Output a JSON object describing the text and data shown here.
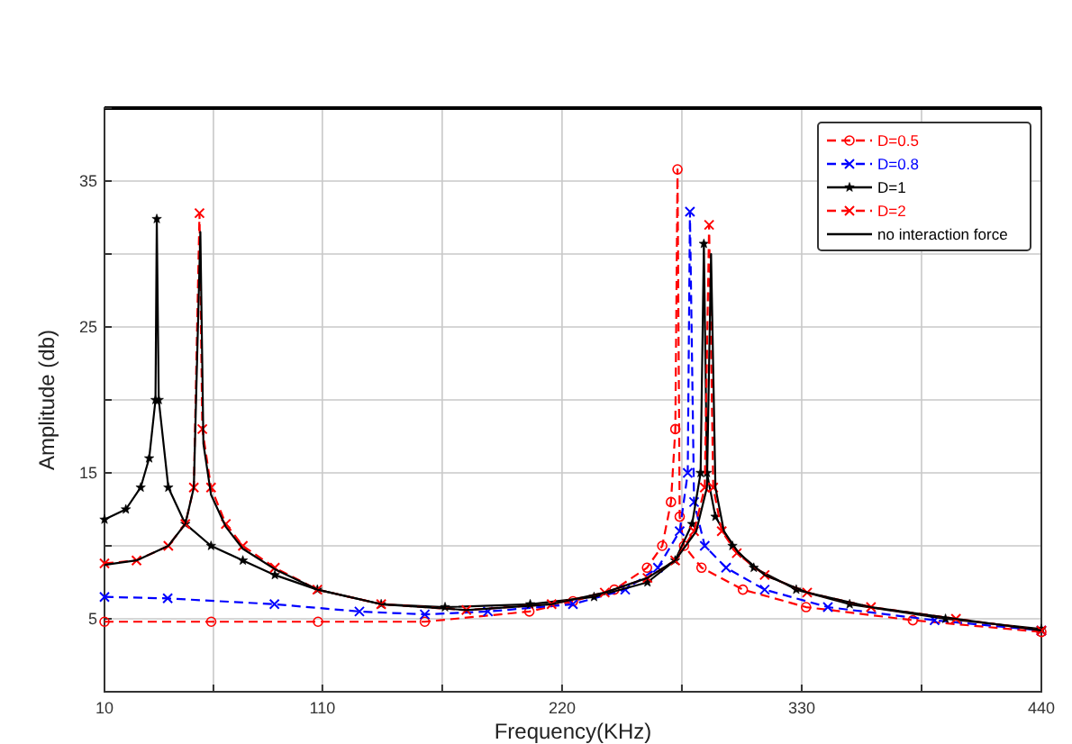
{
  "chart_data": {
    "type": "line",
    "xlabel": "Frequency(KHz)",
    "ylabel": "Amplitude (db)",
    "xlim": [
      10,
      440
    ],
    "xticks": [
      10,
      {
        "value": 60,
        "label": null
      },
      110,
      {
        "value": 165,
        "label": null
      },
      220,
      {
        "value": 275,
        "label": null
      },
      330,
      {
        "value": 385,
        "label": null
      },
      440
    ],
    "ylim": [
      0,
      40
    ],
    "yticks": [
      {
        "value": 0,
        "label": null
      },
      5,
      {
        "value": 10,
        "label": null
      },
      15,
      {
        "value": 20,
        "label": null
      },
      25,
      {
        "value": 30,
        "label": null
      },
      35,
      {
        "value": 40,
        "label": null
      }
    ],
    "grid": true,
    "legend": "top right",
    "series": [
      {
        "name": "D=0.5",
        "color": "#ff0000",
        "marker": "circle",
        "line_style": "dashed",
        "x": [
          10,
          59,
          108,
          157,
          205,
          225,
          244,
          259,
          266,
          270,
          272,
          273,
          274,
          276,
          284,
          303,
          332,
          381,
          440
        ],
        "values": [
          4.8,
          4.8,
          4.8,
          4.8,
          5.5,
          6.2,
          7,
          8.5,
          10,
          13,
          18,
          35.8,
          12,
          10,
          8.5,
          7,
          5.8,
          4.9,
          4.1
        ]
      },
      {
        "name": "D=0.8",
        "color": "#0000ff",
        "marker": "cross",
        "line_style": "dashed",
        "x": [
          10,
          39,
          88,
          127,
          157,
          186,
          225,
          249,
          264,
          274,
          277.7,
          278.7,
          280.6,
          285.5,
          295.3,
          313,
          342,
          391,
          440
        ],
        "values": [
          6.5,
          6.4,
          6,
          5.5,
          5.3,
          5.5,
          6,
          7,
          8.5,
          11,
          15,
          32.9,
          13,
          10,
          8.5,
          7,
          5.8,
          4.9,
          4.2
        ]
      },
      {
        "name": "D=1",
        "color": "#000000",
        "marker": "star",
        "line_style": "solid",
        "x": [
          10,
          19.8,
          26.6,
          30.5,
          33.4,
          34,
          34.9,
          39.3,
          47.1,
          58.9,
          73.5,
          88.2,
          107.7,
          137,
          166.3,
          205.4,
          234.7,
          259.2,
          271.9,
          279.7,
          283.6,
          285.1,
          286.5,
          290.4,
          298.2,
          308,
          327.5,
          352,
          396,
          440
        ],
        "values": [
          11.8,
          12.5,
          14,
          16,
          20,
          32.4,
          20,
          14,
          11.5,
          10,
          9,
          8,
          7,
          6,
          5.8,
          6,
          6.5,
          7.5,
          9,
          11.5,
          15,
          30.7,
          15,
          12,
          10,
          8.5,
          7,
          6,
          5,
          4.3
        ]
      },
      {
        "name": "D=2",
        "color": "#ff0000",
        "marker": "cross",
        "line_style": "dashed",
        "x": [
          10,
          24.7,
          39.3,
          47.1,
          51,
          53.6,
          54.9,
          58.9,
          65.7,
          73.5,
          88.2,
          107.7,
          137,
          176.1,
          215.2,
          239.6,
          259.2,
          271.9,
          280.6,
          285.5,
          287.5,
          289.4,
          293.3,
          300.2,
          313,
          332.5,
          361.8,
          400.8,
          440
        ],
        "values": [
          8.8,
          9,
          10,
          11.5,
          14,
          32.8,
          18,
          14,
          11.5,
          10,
          8.5,
          7,
          6,
          5.6,
          6,
          6.8,
          7.8,
          9,
          11,
          14,
          32,
          14,
          11,
          9.5,
          8,
          6.8,
          5.8,
          5,
          4.2
        ]
      },
      {
        "name": "no interaction force",
        "color": "#000000",
        "marker": "none",
        "line_style": "solid",
        "x": [
          10,
          24.7,
          39.3,
          47.1,
          51,
          54,
          55.4,
          58.9,
          65.7,
          73.5,
          88.2,
          107.7,
          137,
          176.1,
          215.2,
          239.6,
          259.2,
          271.9,
          281.6,
          286.5,
          288.4,
          290.4,
          294.3,
          301.1,
          313,
          332.5,
          361.8,
          400.8,
          440
        ],
        "values": [
          8.7,
          9,
          10,
          11.5,
          14,
          31.5,
          17,
          13.5,
          11.3,
          9.8,
          8.4,
          7,
          6,
          5.6,
          6,
          6.8,
          7.8,
          9,
          11,
          14,
          30,
          14,
          11,
          9.5,
          8,
          6.8,
          5.8,
          5,
          4.2
        ]
      }
    ]
  }
}
